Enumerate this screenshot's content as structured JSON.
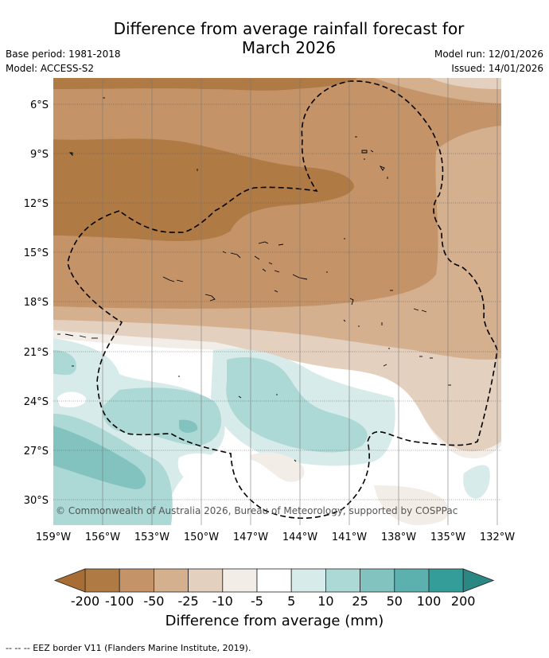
{
  "header": {
    "title": "Difference from average rainfall forecast for\nMarch 2026",
    "base_period": "Base period: 1981-2018",
    "model": "Model: ACCESS-S2",
    "model_run": "Model run: 12/01/2026",
    "issued": "Issued: 14/01/2026"
  },
  "map": {
    "lat_labels": [
      "6°S",
      "9°S",
      "12°S",
      "15°S",
      "18°S",
      "21°S",
      "24°S",
      "27°S",
      "30°S"
    ],
    "lon_labels": [
      "159°W",
      "156°W",
      "153°W",
      "150°W",
      "147°W",
      "144°W",
      "141°W",
      "138°W",
      "135°W",
      "132°W"
    ],
    "copyright": "© Commonwealth of Australia 2026, Bureau of Meteorology, supported by COSPPac"
  },
  "colorbar": {
    "ticks": [
      "-200",
      "-100",
      "-50",
      "-25",
      "-10",
      "-5",
      "5",
      "10",
      "25",
      "50",
      "100",
      "200"
    ],
    "colors": [
      "#a86d35",
      "#b07a44",
      "#c49468",
      "#d4b08f",
      "#e4d0bf",
      "#f3ede7",
      "#ffffff",
      "#d7ecea",
      "#acd8d5",
      "#82c3c0",
      "#5cb0ae",
      "#349d99",
      "#2b8783"
    ],
    "label": "Difference from average (mm)"
  },
  "footnote": "--  --  -- EEZ border V11 (Flanders Marine Institute, 2019)."
}
